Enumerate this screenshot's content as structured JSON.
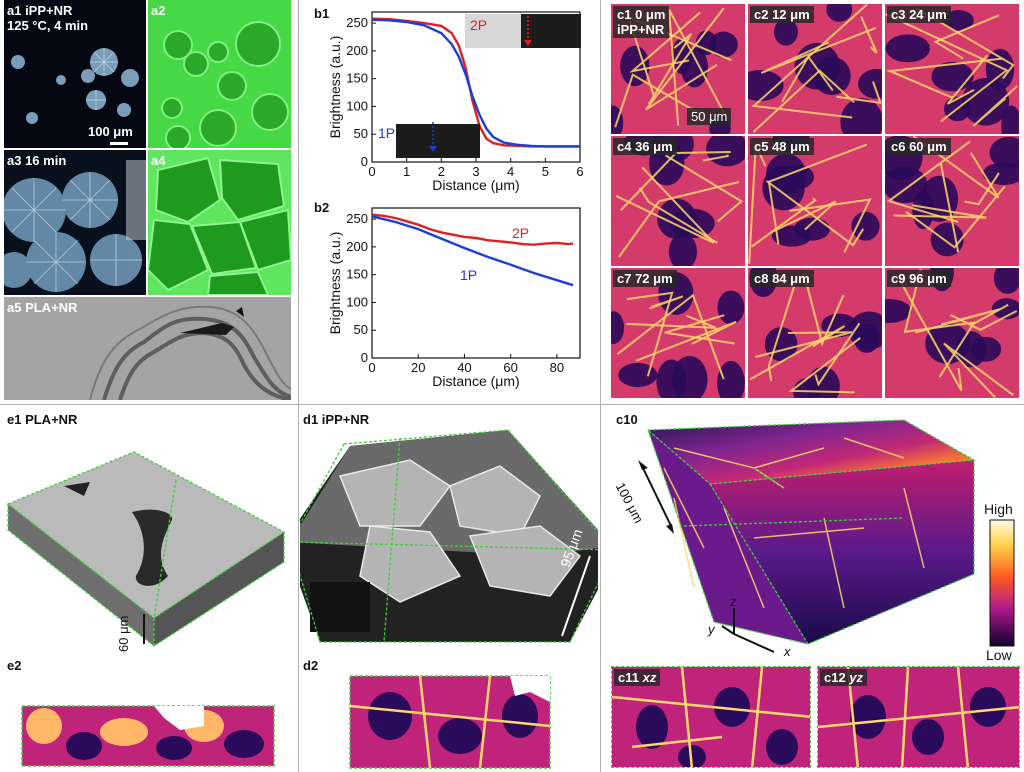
{
  "panels": {
    "a1": "a1 iPP+NR\n125 °C, 4 min",
    "a1_scale": "100 μm",
    "a2": "a2",
    "a3": "a3 16 min",
    "a4": "a4",
    "a5": "a5 PLA+NR",
    "b1": "b1",
    "b2": "b2",
    "c1": "c1 0 μm\niPP+NR",
    "c1_scale": "50 μm",
    "c2": "c2 12 μm",
    "c3": "c3 24 μm",
    "c4": "c4 36 μm",
    "c5": "c5 48 μm",
    "c6": "c6 60 μm",
    "c7": "c7 72 μm",
    "c8": "c8 84 μm",
    "c9": "c9 96 μm",
    "c10": "c10",
    "c10_scale": "100 μm",
    "c10_x": "x",
    "c10_y": "y",
    "c10_z": "z",
    "colorbar_high": "High",
    "colorbar_low": "Low",
    "c11": "c11 ",
    "c11_axes": "xz",
    "c12": "c12 ",
    "c12_axes": "yz",
    "d1": "d1 iPP+NR",
    "d1_scale": "95 μm",
    "d2": "d2",
    "e1": "e1 PLA+NR",
    "e1_scale": "60 μm",
    "e2": "e2"
  },
  "colors": {
    "series_2P": "#e02020",
    "series_1P": "#1a3fd1",
    "frame_dashed": "#3ecf3e",
    "fire_dark": "#1a0a4a",
    "fire_mid": "#c01e6e",
    "fire_bright": "#ffd24a"
  },
  "chart_data": [
    {
      "id": "b1",
      "type": "line",
      "xlabel": "Distance (μm)",
      "ylabel": "Brightness (a.u.)",
      "xlim": [
        0,
        6
      ],
      "ylim": [
        0,
        270
      ],
      "xticks": [
        0,
        1,
        2,
        3,
        4,
        5,
        6
      ],
      "yticks": [
        0,
        50,
        100,
        150,
        200,
        250
      ],
      "inset_labels": {
        "top": "2P",
        "bottom": "1P"
      },
      "series": [
        {
          "name": "2P",
          "color": "#e02020",
          "x": [
            0,
            0.5,
            1,
            1.5,
            2,
            2.3,
            2.5,
            2.7,
            2.9,
            3.1,
            3.3,
            3.5,
            3.8,
            4.2,
            4.6,
            5,
            5.5,
            6
          ],
          "y": [
            258,
            257,
            254,
            250,
            245,
            232,
            210,
            170,
            110,
            65,
            42,
            34,
            30,
            29,
            28,
            28,
            28,
            28
          ]
        },
        {
          "name": "1P",
          "color": "#1a3fd1",
          "x": [
            0,
            0.5,
            1,
            1.5,
            2,
            2.3,
            2.5,
            2.7,
            2.9,
            3.1,
            3.3,
            3.5,
            3.8,
            4.2,
            4.6,
            5,
            5.5,
            6
          ],
          "y": [
            256,
            255,
            252,
            246,
            232,
            212,
            190,
            158,
            118,
            85,
            60,
            45,
            35,
            31,
            29,
            28,
            28,
            28
          ]
        }
      ]
    },
    {
      "id": "b2",
      "type": "line",
      "xlabel": "Distance (μm)",
      "ylabel": "Brightness (a.u.)",
      "xlim": [
        0,
        90
      ],
      "ylim": [
        0,
        270
      ],
      "xticks": [
        0,
        20,
        40,
        60,
        80
      ],
      "yticks": [
        0,
        50,
        100,
        150,
        200,
        250
      ],
      "series": [
        {
          "name": "2P",
          "color": "#e02020",
          "x": [
            0,
            5,
            10,
            15,
            20,
            25,
            30,
            35,
            40,
            45,
            50,
            55,
            60,
            65,
            70,
            75,
            80,
            85,
            87
          ],
          "y": [
            258,
            256,
            252,
            246,
            240,
            232,
            226,
            222,
            218,
            216,
            212,
            210,
            208,
            205,
            204,
            206,
            207,
            205,
            206
          ]
        },
        {
          "name": "1P",
          "color": "#1a3fd1",
          "x": [
            0,
            10,
            20,
            30,
            40,
            50,
            60,
            70,
            80,
            87
          ],
          "y": [
            255,
            245,
            232,
            215,
            198,
            182,
            168,
            153,
            140,
            131
          ]
        }
      ]
    }
  ]
}
